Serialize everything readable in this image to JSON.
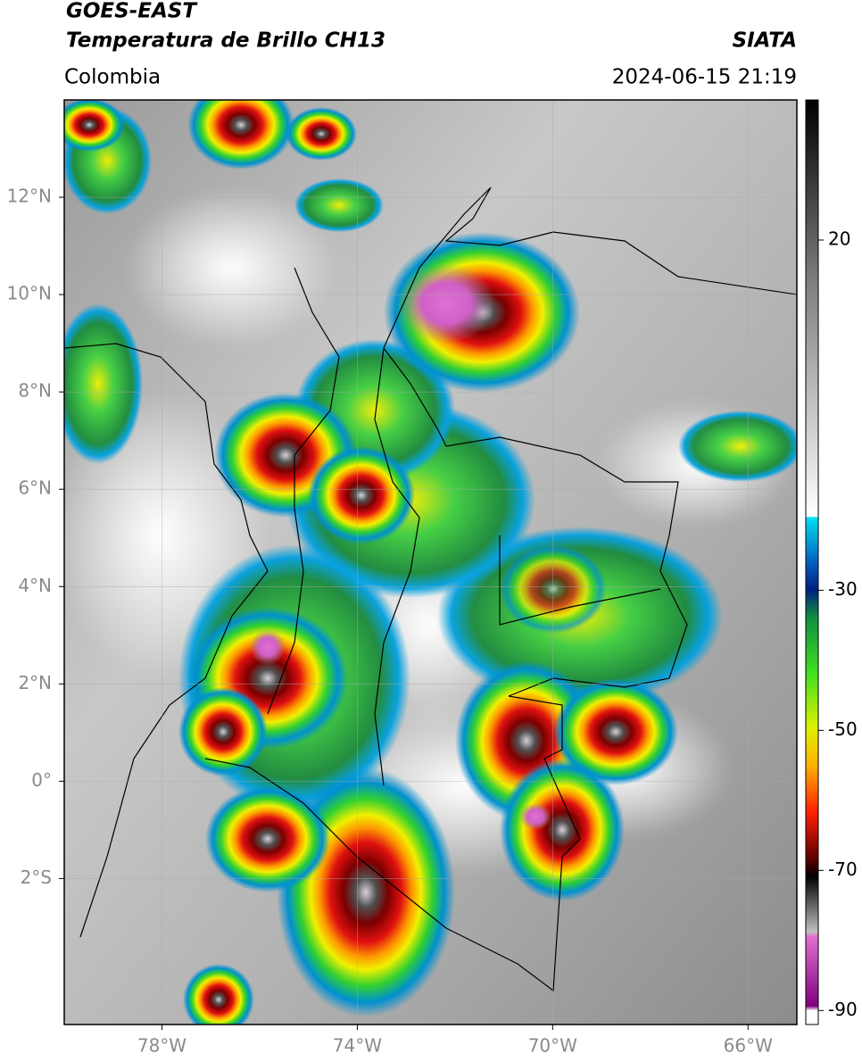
{
  "header": {
    "satellite": "GOES-EAST",
    "product": "Temperatura de Brillo CH13",
    "source": "SIATA",
    "region": "Colombia",
    "timestamp": "2024-06-15 21:19"
  },
  "map": {
    "lon_range": [
      -80,
      -65
    ],
    "lat_range": [
      -5,
      14
    ],
    "lon_ticks": [
      {
        "value": -78,
        "label": "78°W"
      },
      {
        "value": -74,
        "label": "74°W"
      },
      {
        "value": -70,
        "label": "70°W"
      },
      {
        "value": -66,
        "label": "66°W"
      }
    ],
    "lat_ticks": [
      {
        "value": 12,
        "label": "12°N"
      },
      {
        "value": 10,
        "label": "10°N"
      },
      {
        "value": 8,
        "label": "8°N"
      },
      {
        "value": 6,
        "label": "6°N"
      },
      {
        "value": 4,
        "label": "4°N"
      },
      {
        "value": 2,
        "label": "2°N"
      },
      {
        "value": 0,
        "label": "0°"
      },
      {
        "value": -2,
        "label": "2°S"
      }
    ]
  },
  "colorbar": {
    "range": [
      -92,
      40
    ],
    "ticks": [
      20,
      -30,
      -50,
      -70,
      -90
    ]
  }
}
